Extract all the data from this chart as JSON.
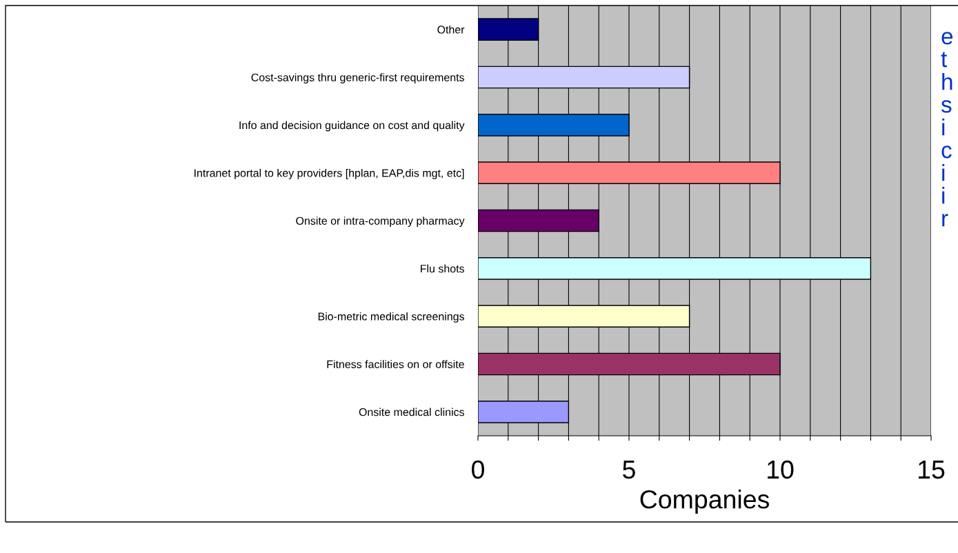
{
  "chart_data": {
    "type": "bar",
    "orientation": "horizontal",
    "xlabel": "Companies",
    "categories": [
      "Other",
      "Cost-savings thru generic-first requirements",
      "Info and decision guidance on cost and quality",
      "Intranet portal to key providers [hplan, EAP,dis mgt, etc]",
      "Onsite or intra-company pharmacy",
      "Flu shots",
      "Bio-metric medical screenings",
      "Fitness facilities on or offsite",
      "Onsite medical clinics"
    ],
    "values": [
      2,
      7,
      5,
      10,
      4,
      13,
      7,
      10,
      3
    ],
    "colors": [
      "#000080",
      "#ccccff",
      "#0066cc",
      "#ff8080",
      "#660066",
      "#ccffff",
      "#ffffcc",
      "#993366",
      "#9999ff"
    ],
    "xlim": [
      0,
      15
    ],
    "xticks": [
      0,
      {
        "value": 1,
        "label": null
      },
      {
        "value": 2,
        "label": null
      },
      {
        "value": 3,
        "label": null
      },
      {
        "value": 4,
        "label": null
      },
      5,
      {
        "value": 6,
        "label": null
      },
      {
        "value": 7,
        "label": null
      },
      {
        "value": 8,
        "label": null
      },
      {
        "value": 9,
        "label": null
      },
      10,
      {
        "value": 11,
        "label": null
      },
      {
        "value": 12,
        "label": null
      },
      {
        "value": 13,
        "label": null
      },
      {
        "value": 14,
        "label": null
      },
      15
    ],
    "grid": "x",
    "annotations": [
      "e\nt\nh\ns\ni\nc\ni\ni\nr"
    ]
  }
}
